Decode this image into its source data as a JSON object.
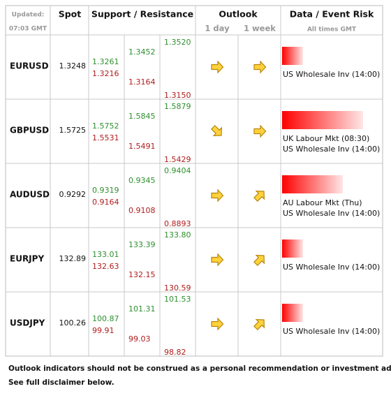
{
  "header": {
    "updated": "Updated:",
    "time": "07:03 GMT",
    "spot": "Spot",
    "levels": "Support / Resistance",
    "outlook": "Outlook",
    "day": "1 day",
    "week": "1 week",
    "event": "Data / Event Risk",
    "times": "All times GMT"
  },
  "rows": [
    {
      "pair": "EURUSD",
      "spot": "1.3248",
      "levels": [
        [
          "1.3261",
          "1.3216"
        ],
        [
          "1.3452",
          "1.3164"
        ],
        [
          "1.3520",
          "1.3150"
        ]
      ],
      "events": [
        "US Wholesale Inv (14:00)"
      ]
    },
    {
      "pair": "GBPUSD",
      "spot": "1.5725",
      "levels": [
        [
          "1.5752",
          "1.5531"
        ],
        [
          "1.5845",
          "1.5491"
        ],
        [
          "1.5879",
          "1.5429"
        ]
      ],
      "events": [
        "UK Labour Mkt (08:30)",
        "US Wholesale Inv (14:00)"
      ]
    },
    {
      "pair": "AUDUSD",
      "spot": "0.9292",
      "levels": [
        [
          "0.9319",
          "0.9164"
        ],
        [
          "0.9345",
          "0.9108"
        ],
        [
          "0.9404",
          "0.8893"
        ]
      ],
      "events": [
        "AU Labour Mkt (Thu)",
        "US Wholesale Inv (14:00)"
      ]
    },
    {
      "pair": "EURJPY",
      "spot": "132.89",
      "levels": [
        [
          "133.01",
          "132.63"
        ],
        [
          "133.39",
          "132.15"
        ],
        [
          "133.80",
          "130.59"
        ]
      ],
      "events": [
        "US Wholesale Inv (14:00)"
      ]
    },
    {
      "pair": "USDJPY",
      "spot": "100.26",
      "levels": [
        [
          "100.87",
          "99.91"
        ],
        [
          "101.31",
          "99.03"
        ],
        [
          "101.53",
          "98.82"
        ]
      ],
      "events": [
        "US Wholesale Inv (14:00)"
      ]
    }
  ],
  "footer": [
    "Outlook indicators should not be construed as a personal recommendation or investment advice.",
    "See full disclaimer below."
  ]
}
